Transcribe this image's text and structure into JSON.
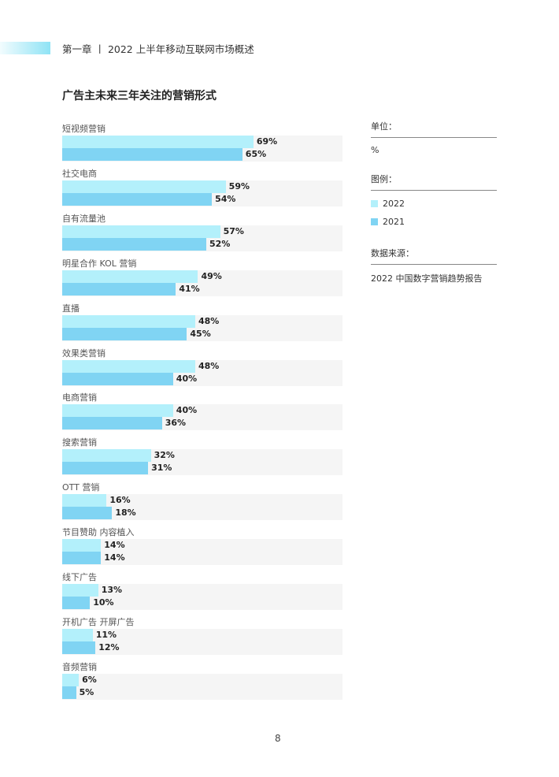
{
  "header": {
    "text": "第一章 丨 2022 上半年移动互联网市场概述"
  },
  "page_number": "8",
  "colors": {
    "2022": "#b3f0fb",
    "2021": "#80d4f3",
    "track": "#f5f5f5"
  },
  "sidebar": {
    "unit_label": "单位：",
    "unit_value": "%",
    "legend_label": "图例：",
    "source_label": "数据来源：",
    "source_value": "2022 中国数字营销趋势报告"
  },
  "chart_data": {
    "type": "bar",
    "orientation": "horizontal",
    "title": "广告主未来三年关注的营销形式",
    "unit": "%",
    "xlim": [
      0,
      100
    ],
    "categories": [
      "短视频营销",
      "社交电商",
      "自有流量池",
      "明星合作 KOL 营销",
      "直播",
      "效果类营销",
      "电商营销",
      "搜索营销",
      "OTT 营销",
      "节目赞助 内容植入",
      "线下广告",
      "开机广告 开屏广告",
      "音频营销"
    ],
    "series": [
      {
        "name": "2022",
        "values": [
          69,
          59,
          57,
          49,
          48,
          48,
          40,
          32,
          16,
          14,
          13,
          11,
          6
        ]
      },
      {
        "name": "2021",
        "values": [
          65,
          54,
          52,
          41,
          45,
          40,
          36,
          31,
          18,
          14,
          10,
          12,
          5
        ]
      }
    ],
    "legend": "right",
    "grid": false
  }
}
